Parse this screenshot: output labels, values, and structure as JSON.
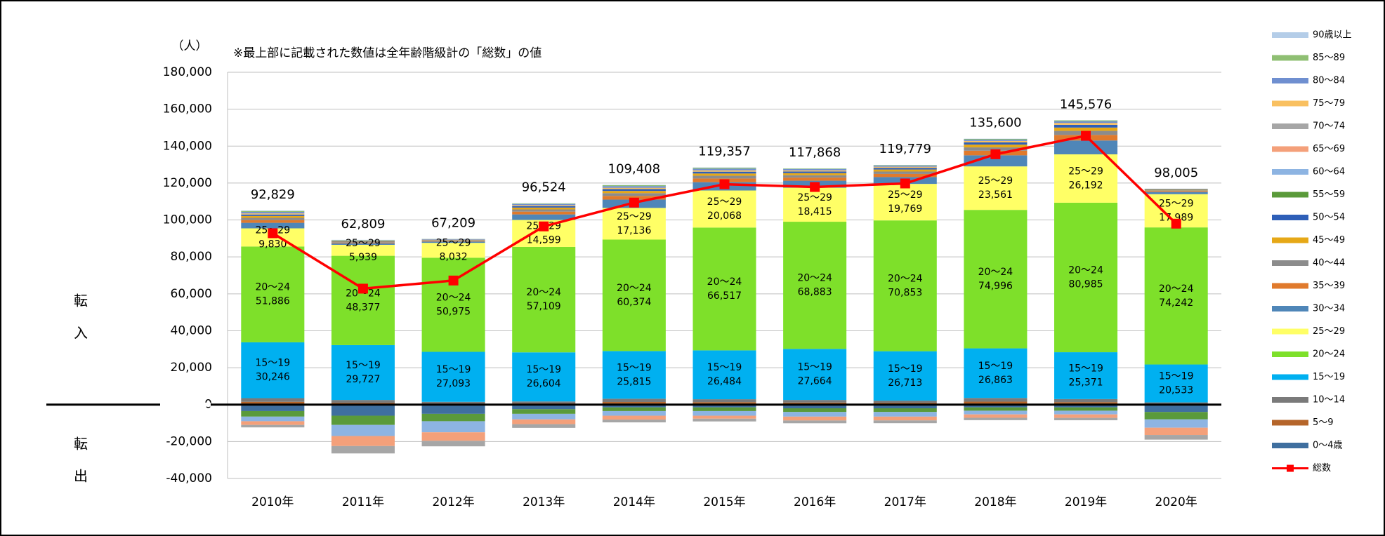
{
  "chart_data": {
    "type": "bar",
    "stacked": true,
    "y_axis_label": "（人）",
    "note": "※最上部に記載された数値は全年齢階級計の「総数」の値",
    "side_label_top": "転入",
    "side_label_bottom": "転出",
    "categories": [
      "2010年",
      "2011年",
      "2012年",
      "2013年",
      "2014年",
      "2015年",
      "2016年",
      "2017年",
      "2018年",
      "2019年",
      "2020年"
    ],
    "ylim": [
      -40000,
      180000
    ],
    "yticks": [
      {
        "value": -40000,
        "label": "-40,000"
      },
      {
        "value": -20000,
        "label": "-20,000"
      },
      0,
      {
        "value": 20000,
        "label": "20,000"
      },
      {
        "value": 40000,
        "label": "40,000"
      },
      {
        "value": 60000,
        "label": "60,000"
      },
      {
        "value": 80000,
        "label": "80,000"
      },
      {
        "value": 100000,
        "label": "100,000"
      },
      {
        "value": 120000,
        "label": "120,000"
      },
      {
        "value": 140000,
        "label": "140,000"
      },
      {
        "value": 160000,
        "label": "160,000"
      },
      {
        "value": 180000,
        "label": "180,000"
      }
    ],
    "grid": true,
    "legend": "right",
    "series": [
      {
        "name": "0～4歳",
        "color": "#3f6f9f",
        "values": [
          -3500,
          -6000,
          -5000,
          -2500,
          -1500,
          -1500,
          -2000,
          -2000,
          -1500,
          -1500,
          -4000
        ]
      },
      {
        "name": "5～9",
        "color": "#b5652a",
        "values": [
          1500,
          1000,
          600,
          700,
          1400,
          1300,
          1100,
          1000,
          1600,
          1300,
          500
        ]
      },
      {
        "name": "10～14",
        "color": "#7a7a7a",
        "values": [
          2000,
          1500,
          900,
          1000,
          1800,
          1600,
          1400,
          1200,
          2000,
          1700,
          700
        ]
      },
      {
        "name": "15～19",
        "color": "#00b0f0",
        "values": [
          30246,
          29727,
          27093,
          26604,
          25815,
          26484,
          27664,
          26713,
          26863,
          25371,
          20533
        ],
        "value_labels": [
          "30,246",
          "29,727",
          "27,093",
          "26,604",
          "25,815",
          "26,484",
          "27,664",
          "26,713",
          "26,863",
          "25,371",
          "20,533"
        ]
      },
      {
        "name": "20～24",
        "color": "#7ee02a",
        "values": [
          51886,
          48377,
          50975,
          57109,
          60374,
          66517,
          68883,
          70853,
          74996,
          80985,
          74242
        ],
        "value_labels": [
          "51,886",
          "48,377",
          "50,975",
          "57,109",
          "60,374",
          "66,517",
          "68,883",
          "70,853",
          "74,996",
          "80,985",
          "74,242"
        ]
      },
      {
        "name": "25～29",
        "color": "#ffff66",
        "values": [
          9830,
          5939,
          8032,
          14599,
          17136,
          20068,
          18415,
          19769,
          23561,
          26192,
          17989
        ],
        "value_labels": [
          "9,830",
          "5,939",
          "8,032",
          "14,599",
          "17,136",
          "20,068",
          "18,415",
          "19,769",
          "23,561",
          "26,192",
          "17,989"
        ]
      },
      {
        "name": "30～34",
        "color": "#4f86b8",
        "values": [
          3000,
          800,
          700,
          3000,
          4500,
          4500,
          3800,
          3700,
          6000,
          7500,
          1200
        ]
      },
      {
        "name": "35～39",
        "color": "#e07a2c",
        "values": [
          1500,
          400,
          300,
          1500,
          2000,
          2000,
          1700,
          1700,
          2500,
          3000,
          500
        ]
      },
      {
        "name": "40～44",
        "color": "#8c8c8c",
        "values": [
          1200,
          300,
          300,
          1200,
          1500,
          1500,
          1300,
          1300,
          1800,
          2200,
          400
        ]
      },
      {
        "name": "45～49",
        "color": "#e6a817",
        "values": [
          1000,
          200,
          200,
          1000,
          1200,
          1200,
          1100,
          1100,
          1500,
          1800,
          300
        ]
      },
      {
        "name": "50～54",
        "color": "#2e5fb8",
        "values": [
          800,
          200,
          200,
          800,
          1000,
          1000,
          900,
          900,
          1200,
          1500,
          300
        ]
      },
      {
        "name": "55～59",
        "color": "#5a9a3a",
        "values": [
          -3000,
          -5000,
          -4000,
          -2500,
          -2000,
          -2000,
          -2000,
          -2000,
          -1800,
          -1800,
          -4000
        ]
      },
      {
        "name": "60～64",
        "color": "#8db4e2",
        "values": [
          -2500,
          -6000,
          -6000,
          -3000,
          -2500,
          -2500,
          -2500,
          -2500,
          -2000,
          -2000,
          -4500
        ]
      },
      {
        "name": "65～69",
        "color": "#f4a07a",
        "values": [
          -2000,
          -5434,
          -4591,
          -2588,
          -2117,
          -1612,
          -2094,
          -2056,
          -1820,
          -1872,
          -3959
        ]
      },
      {
        "name": "70～74",
        "color": "#a6a6a6",
        "values": [
          -1333,
          -4000,
          -3000,
          -2000,
          -1500,
          -1500,
          -1500,
          -1500,
          -1300,
          -1300,
          -2500
        ]
      },
      {
        "name": "75～79",
        "color": "#f9c060",
        "values": [
          600,
          200,
          100,
          500,
          700,
          700,
          600,
          600,
          800,
          1000,
          100
        ]
      },
      {
        "name": "80～84",
        "color": "#6f8fd0",
        "values": [
          800,
          300,
          200,
          600,
          900,
          900,
          700,
          600,
          700,
          900,
          100
        ]
      },
      {
        "name": "85～89",
        "color": "#8fbf73",
        "values": [
          500,
          200,
          100,
          300,
          500,
          500,
          300,
          300,
          400,
          500,
          60
        ]
      },
      {
        "name": "90歳以上",
        "color": "#b4cde8",
        "values": [
          300,
          100,
          100,
          200,
          200,
          200,
          100,
          100,
          100,
          100,
          40
        ]
      },
      {
        "name": "総数",
        "type": "line",
        "color": "#ff0000",
        "values": [
          92829,
          62809,
          67209,
          96524,
          109408,
          119357,
          117868,
          119779,
          135600,
          145576,
          98005
        ],
        "value_labels": [
          "92,829",
          "62,809",
          "67,209",
          "96,524",
          "109,408",
          "119,357",
          "117,868",
          "119,779",
          "135,600",
          "145,576",
          "98,005"
        ]
      }
    ]
  }
}
